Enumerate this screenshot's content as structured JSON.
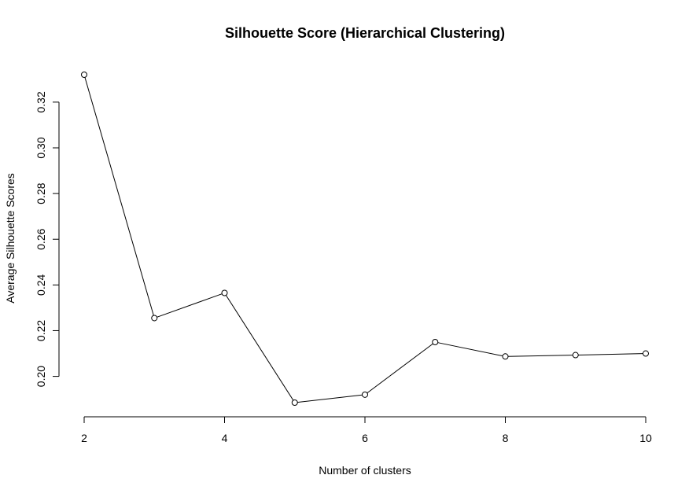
{
  "chart_data": {
    "type": "line",
    "title": "Silhouette Score (Hierarchical Clustering)",
    "xlabel": "Number of clusters",
    "ylabel": "Average Silhouette Scores",
    "x": [
      2,
      3,
      4,
      5,
      6,
      7,
      8,
      9,
      10
    ],
    "series": [
      {
        "values": [
          0.332,
          0.2255,
          0.2365,
          0.1885,
          0.192,
          0.215,
          0.2087,
          0.2093,
          0.21
        ]
      }
    ],
    "xticks": [
      2,
      4,
      6,
      8,
      10
    ],
    "xtick_labels": [
      "2",
      "4",
      "6",
      "8",
      "10"
    ],
    "yticks": [
      0.2,
      0.22,
      0.24,
      0.26,
      0.28,
      0.3,
      0.32
    ],
    "ytick_labels": [
      "0.20",
      "0.22",
      "0.24",
      "0.26",
      "0.28",
      "0.30",
      "0.32"
    ],
    "xlim": [
      2,
      10
    ],
    "ylim": [
      0.1885,
      0.332
    ],
    "grid": false,
    "legend": "none",
    "marker": "open-circle",
    "line_color": "#000000"
  }
}
